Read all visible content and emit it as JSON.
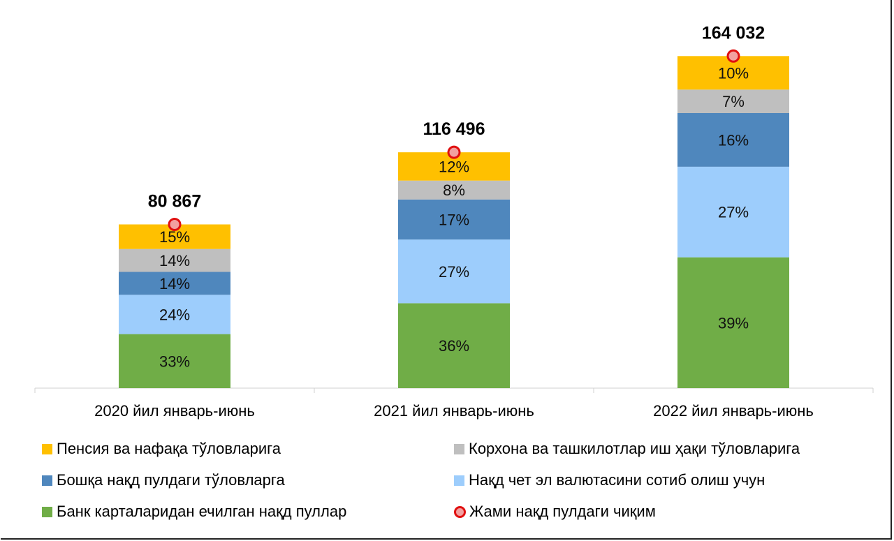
{
  "chart_data": {
    "type": "bar",
    "stacked": true,
    "categories": [
      "2020 йил январь-июнь",
      "2021 йил январь-июнь",
      "2022 йил январь-июнь"
    ],
    "series": [
      {
        "name": "Банк карталаридан ечилган нақд пуллар",
        "color": "#70ad47",
        "values": [
          33,
          36,
          39
        ],
        "labels": [
          "33%",
          "36%",
          "39%"
        ]
      },
      {
        "name": "Нақд чет эл валютасини сотиб олиш учун",
        "color": "#9dcdfc",
        "values": [
          24,
          27,
          27
        ],
        "labels": [
          "24%",
          "27%",
          "27%"
        ]
      },
      {
        "name": "Бошқа нақд пулдаги тўловларга",
        "color": "#4f87bd",
        "values": [
          14,
          17,
          16
        ],
        "labels": [
          "14%",
          "17%",
          "16%"
        ]
      },
      {
        "name": "Корхона ва ташкилотлар иш ҳақи тўловларига",
        "color": "#bfbfbf",
        "values": [
          14,
          8,
          7
        ],
        "labels": [
          "14%",
          "8%",
          "7%"
        ]
      },
      {
        "name": "Пенсия ва нафақа тўловларига",
        "color": "#ffc000",
        "values": [
          15,
          12,
          10
        ],
        "labels": [
          "15%",
          "12%",
          "10%"
        ]
      }
    ],
    "totals": {
      "name": "Жами нақд пулдаги чиқим",
      "values": [
        80867,
        116496,
        164032
      ],
      "labels": [
        "80 867",
        "116 496",
        "164 032"
      ],
      "marker_color": "#e01010"
    },
    "ylim": [
      0,
      200000
    ],
    "grid": false,
    "legend_position": "bottom"
  },
  "legend": {
    "items": [
      {
        "label": "Пенсия ва нафақа тўловларига",
        "color": "#ffc000",
        "kind": "square"
      },
      {
        "label": "Корхона ва ташкилотлар иш ҳақи тўловларига",
        "color": "#bfbfbf",
        "kind": "square"
      },
      {
        "label": "Бошқа нақд пулдаги тўловларга",
        "color": "#4f87bd",
        "kind": "square"
      },
      {
        "label": "Нақд чет эл валютасини сотиб олиш учун",
        "color": "#9dcdfc",
        "kind": "square"
      },
      {
        "label": "Банк карталаридан ечилган нақд пуллар",
        "color": "#70ad47",
        "kind": "square"
      },
      {
        "label": "Жами нақд пулдаги чиқим",
        "color": "#e01010",
        "kind": "marker"
      }
    ]
  }
}
